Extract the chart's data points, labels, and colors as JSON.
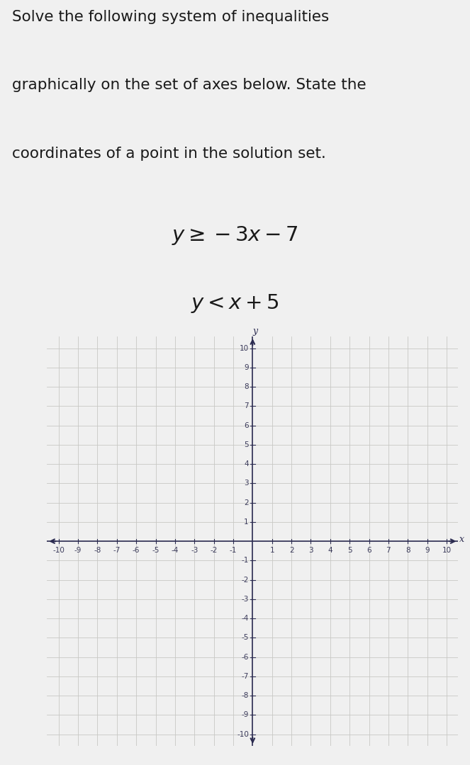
{
  "title_line1": "Solve the following system of inequalities",
  "title_line2": "graphically on the set of axes below. State the",
  "title_line3": "coordinates of a point in the solution set.",
  "ineq1_latex": "$y \\geq -3x - 7$",
  "ineq2_latex": "$y < x + 5$",
  "bg_color": "#f0f0f0",
  "plot_bg_color": "#f5f5f0",
  "grid_color": "#c8c8c4",
  "axis_color": "#2b2b50",
  "tick_label_color": "#3a3a5a",
  "text_color": "#1a1a1a",
  "axis_range": [
    -10,
    10
  ],
  "figsize": [
    6.63,
    10.8
  ],
  "dpi": 100
}
